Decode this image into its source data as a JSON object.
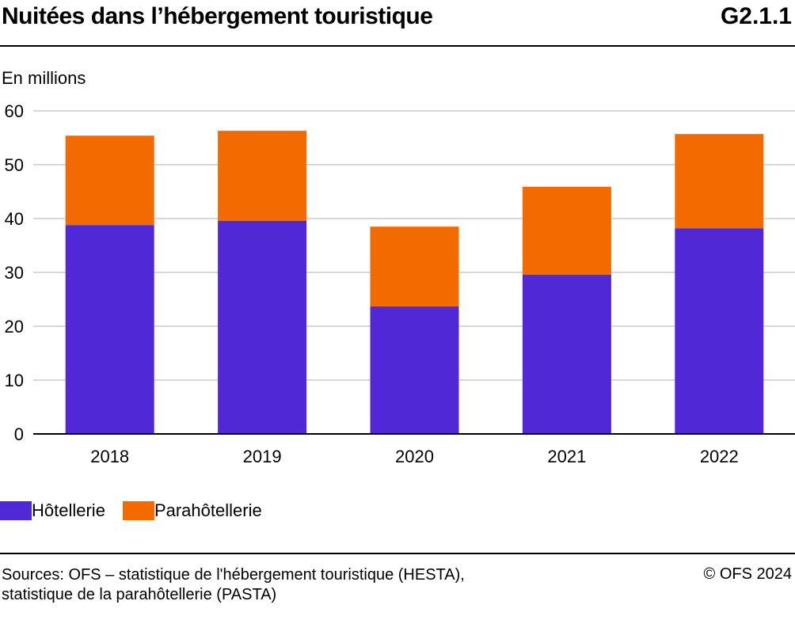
{
  "header": {
    "title": "Nuitées dans l’hébergement touristique",
    "code": "G2.1.1"
  },
  "unit_label": "En millions",
  "colors": {
    "hotellerie": "#5128d6",
    "parahotellerie": "#f26a00",
    "grid": "#cccccc"
  },
  "chart_data": {
    "type": "bar",
    "stacked": true,
    "categories": [
      "2018",
      "2019",
      "2020",
      "2021",
      "2022"
    ],
    "series": [
      {
        "name": "Hôtellerie",
        "values": [
          38.8,
          39.6,
          23.7,
          29.6,
          38.2
        ]
      },
      {
        "name": "Parahôtellerie",
        "values": [
          16.6,
          16.7,
          14.8,
          16.3,
          17.5
        ]
      }
    ],
    "ylabel": "En millions",
    "ylim": [
      0,
      60
    ],
    "yticks": [
      0,
      10,
      20,
      30,
      40,
      50,
      60
    ],
    "grid": true,
    "legend": "bottom-left"
  },
  "legend": {
    "items": [
      "Hôtellerie",
      "Parahôtellerie"
    ]
  },
  "footer": {
    "sources_line1": "Sources: OFS – statistique de l'hébergement touristique (HESTA),",
    "sources_line2": "statistique de la parahôtellerie (PASTA)",
    "copyright": "© OFS 2024"
  }
}
